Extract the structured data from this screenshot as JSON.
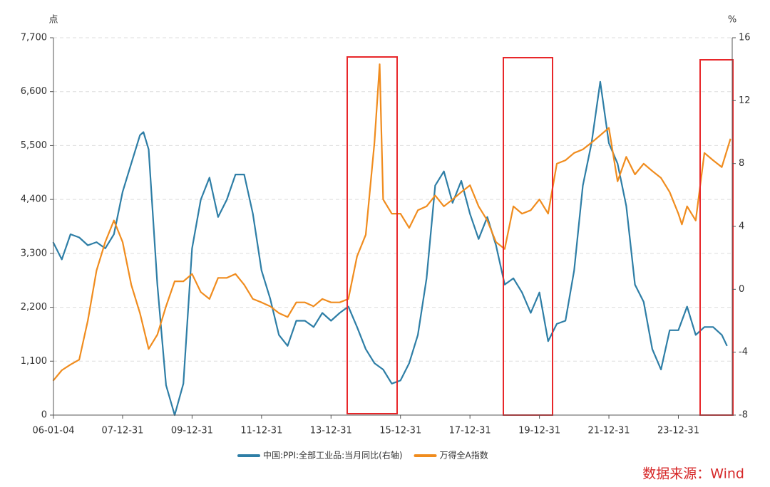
{
  "chart_data": {
    "type": "line",
    "y_label": "点",
    "y2_label": "%",
    "source": "数据来源：Wind",
    "xlim": [
      2006.01,
      2025.55
    ],
    "xticks": [
      {
        "value": 2006.01,
        "label": "06-01-04"
      },
      {
        "value": 2008.0,
        "label": "07-12-31"
      },
      {
        "value": 2010.0,
        "label": "09-12-31"
      },
      {
        "value": 2012.0,
        "label": "11-12-31"
      },
      {
        "value": 2014.0,
        "label": "13-12-31"
      },
      {
        "value": 2016.0,
        "label": "15-12-31"
      },
      {
        "value": 2018.0,
        "label": "17-12-31"
      },
      {
        "value": 2020.0,
        "label": "19-12-31"
      },
      {
        "value": 2022.0,
        "label": "21-12-31"
      },
      {
        "value": 2024.0,
        "label": "23-12-31"
      }
    ],
    "ylim": [
      0,
      7700
    ],
    "yticks": [
      0,
      {
        "value": 1100,
        "label": "1,100"
      },
      {
        "value": 2200,
        "label": "2,200"
      },
      {
        "value": 3300,
        "label": "3,300"
      },
      {
        "value": 4400,
        "label": "4,400"
      },
      {
        "value": 5500,
        "label": "5,500"
      },
      {
        "value": 6600,
        "label": "6,600"
      },
      {
        "value": 7700,
        "label": "7,700"
      }
    ],
    "y2lim": [
      -8,
      16
    ],
    "y2ticks": [
      -8,
      -4,
      0,
      4,
      8,
      12,
      16
    ],
    "grid": true,
    "legend": "bottom",
    "series": [
      {
        "name": "中国:PPI:全部工业品:当月同比(右轴)",
        "color": "#2e7ea6",
        "axis": "y2",
        "x": [
          2006.0,
          2006.25,
          2006.5,
          2006.75,
          2007.0,
          2007.25,
          2007.5,
          2007.75,
          2008.0,
          2008.25,
          2008.5,
          2008.6,
          2008.75,
          2009.0,
          2009.25,
          2009.5,
          2009.75,
          2010.0,
          2010.25,
          2010.5,
          2010.75,
          2011.0,
          2011.25,
          2011.5,
          2011.75,
          2012.0,
          2012.25,
          2012.5,
          2012.75,
          2013.0,
          2013.25,
          2013.5,
          2013.75,
          2014.0,
          2014.25,
          2014.5,
          2014.75,
          2015.0,
          2015.25,
          2015.5,
          2015.75,
          2016.0,
          2016.25,
          2016.5,
          2016.75,
          2017.0,
          2017.25,
          2017.5,
          2017.75,
          2018.0,
          2018.25,
          2018.5,
          2018.75,
          2019.0,
          2019.25,
          2019.5,
          2019.75,
          2020.0,
          2020.25,
          2020.5,
          2020.75,
          2021.0,
          2021.25,
          2021.5,
          2021.75,
          2022.0,
          2022.25,
          2022.5,
          2022.75,
          2023.0,
          2023.25,
          2023.5,
          2023.75,
          2024.0,
          2024.25,
          2024.5,
          2024.75,
          2025.0,
          2025.25,
          2025.4
        ],
        "values": [
          3.0,
          1.9,
          3.5,
          3.3,
          2.8,
          3.0,
          2.6,
          3.5,
          6.2,
          8.0,
          9.8,
          10.0,
          8.9,
          0.3,
          -6.1,
          -8.0,
          -6.0,
          2.6,
          5.7,
          7.1,
          4.6,
          5.7,
          7.3,
          7.3,
          4.8,
          1.2,
          -0.6,
          -2.9,
          -3.6,
          -2.0,
          -2.0,
          -2.4,
          -1.5,
          -2.0,
          -1.5,
          -1.1,
          -2.4,
          -3.8,
          -4.7,
          -5.1,
          -6.0,
          -5.8,
          -4.7,
          -2.9,
          0.7,
          6.6,
          7.5,
          5.5,
          6.9,
          4.8,
          3.2,
          4.6,
          2.8,
          0.3,
          0.7,
          -0.2,
          -1.5,
          -0.2,
          -3.3,
          -2.2,
          -2.0,
          1.2,
          6.6,
          9.3,
          13.2,
          9.3,
          8.0,
          5.3,
          0.3,
          -0.8,
          -3.8,
          -5.1,
          -2.6,
          -2.6,
          -1.1,
          -2.9,
          -2.4,
          -2.4,
          -2.9,
          -3.6
        ]
      },
      {
        "name": "万得全A指数",
        "color": "#f08c1e",
        "axis": "y",
        "x": [
          2006.0,
          2006.25,
          2006.5,
          2006.75,
          2007.0,
          2007.25,
          2007.5,
          2007.75,
          2008.0,
          2008.25,
          2008.5,
          2008.75,
          2009.0,
          2009.25,
          2009.5,
          2009.75,
          2010.0,
          2010.25,
          2010.5,
          2010.75,
          2011.0,
          2011.25,
          2011.5,
          2011.75,
          2012.0,
          2012.25,
          2012.5,
          2012.75,
          2013.0,
          2013.25,
          2013.5,
          2013.75,
          2014.0,
          2014.25,
          2014.5,
          2014.75,
          2015.0,
          2015.25,
          2015.4,
          2015.5,
          2015.75,
          2016.0,
          2016.25,
          2016.5,
          2016.75,
          2017.0,
          2017.25,
          2017.5,
          2017.75,
          2018.0,
          2018.25,
          2018.5,
          2018.75,
          2019.0,
          2019.25,
          2019.5,
          2019.75,
          2020.0,
          2020.25,
          2020.5,
          2020.75,
          2021.0,
          2021.25,
          2021.5,
          2021.75,
          2022.0,
          2022.25,
          2022.5,
          2022.75,
          2023.0,
          2023.25,
          2023.5,
          2023.75,
          2024.0,
          2024.1,
          2024.25,
          2024.5,
          2024.75,
          2025.0,
          2025.25,
          2025.5
        ],
        "values": [
          700,
          915,
          1030,
          1130,
          1930,
          2950,
          3530,
          3970,
          3530,
          2660,
          2080,
          1350,
          1640,
          2220,
          2730,
          2730,
          2880,
          2510,
          2370,
          2800,
          2800,
          2880,
          2660,
          2370,
          2300,
          2220,
          2080,
          2000,
          2300,
          2300,
          2220,
          2370,
          2300,
          2300,
          2370,
          3240,
          3680,
          5560,
          7160,
          4400,
          4110,
          4110,
          3820,
          4180,
          4260,
          4480,
          4260,
          4400,
          4550,
          4690,
          4260,
          3970,
          3530,
          3390,
          4260,
          4110,
          4180,
          4400,
          4110,
          5130,
          5200,
          5350,
          5420,
          5560,
          5710,
          5860,
          4770,
          5270,
          4910,
          5130,
          4980,
          4840,
          4550,
          4110,
          3890,
          4260,
          3970,
          5350,
          5200,
          5060,
          5640
        ]
      }
    ]
  }
}
